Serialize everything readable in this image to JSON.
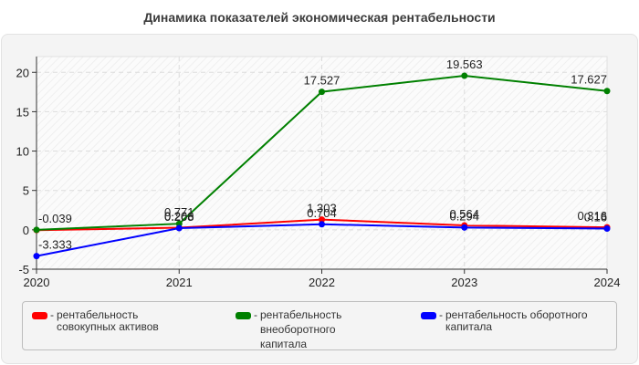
{
  "title": "Динамика показателей экономическая рентабельности",
  "legend": {
    "items": [
      {
        "label": "рентабельность совокупных активов",
        "color": "#ff0000"
      },
      {
        "label": "рентабельность внеоборотного капитала",
        "color": "#008000"
      },
      {
        "label": "рентабельность оборотного капитала",
        "color": "#0000ff"
      }
    ]
  },
  "chart_data": {
    "type": "line",
    "title": "Динамика показателей экономическая рентабельности",
    "xlabel": "",
    "ylabel": "",
    "categories": [
      "2020",
      "2021",
      "2022",
      "2023",
      "2024"
    ],
    "series": [
      {
        "name": "рентабельность совокупных активов",
        "color": "#ff0000",
        "values": [
          -0.039,
          0.266,
          1.303,
          0.564,
          0.316
        ]
      },
      {
        "name": "рентабельность внеоборотного капитала",
        "color": "#008000",
        "values": [
          0.0,
          0.771,
          17.527,
          19.563,
          17.627
        ]
      },
      {
        "name": "рентабельность оборотного капитала",
        "color": "#0000ff",
        "values": [
          -3.333,
          0.208,
          0.704,
          0.294,
          0.16
        ]
      }
    ],
    "ylim": [
      -5,
      22
    ],
    "yticks": [
      -5,
      0,
      5,
      10,
      15,
      20
    ],
    "grid": true,
    "legend_position": "bottom"
  }
}
